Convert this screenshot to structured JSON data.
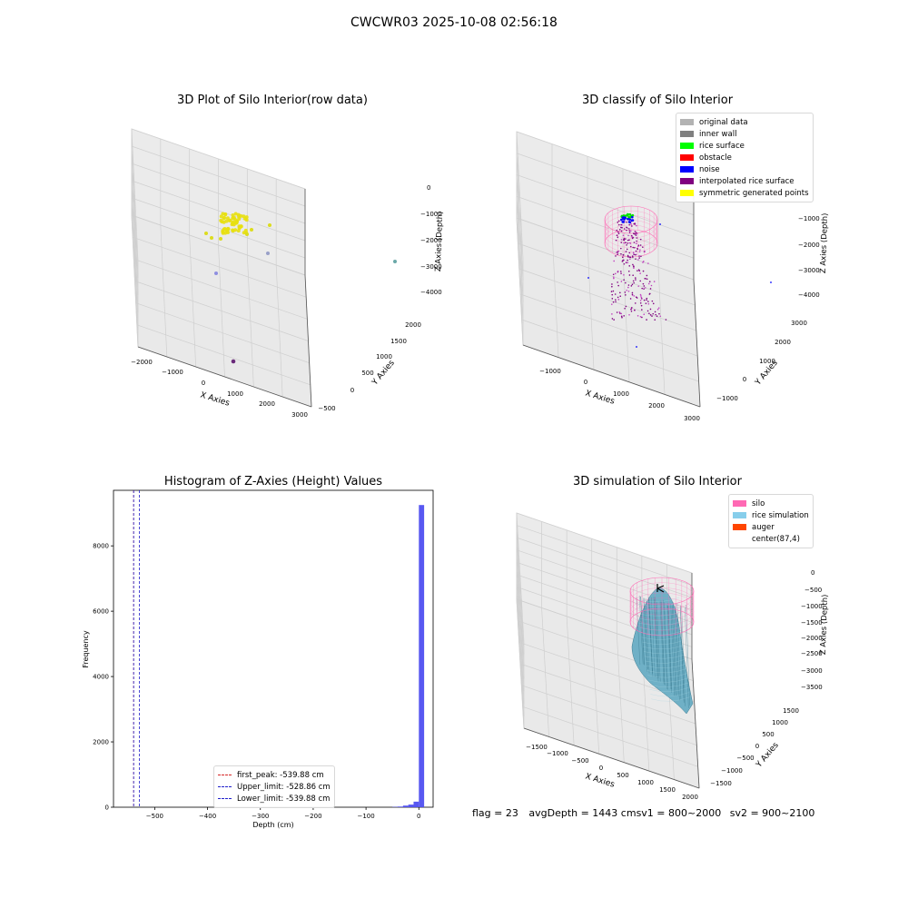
{
  "suptitle": "CWCWR03 2025-10-08 02:56:18",
  "footer": {
    "flag": "flag = 23",
    "avg_depth": "avgDepth = 1443 cm",
    "sv1": "sv1 = 800~2000",
    "sv2": "sv2 = 900~2100"
  },
  "colors": {
    "histogram_bar": "#4f4ff0",
    "first_peak_line": "#d62728",
    "limit_line": "#1f1fcc",
    "silo_wire": "#ff69b4",
    "rice_simulation": "#7fc4d8",
    "auger": "#ff4500"
  },
  "chart_data": [
    {
      "type": "scatter",
      "subtype": "3d",
      "title": "3D Plot of Silo Interior(row data)",
      "xlabel": "X Axies",
      "ylabel": "Y Axies",
      "zlabel": "Z Axies (Depth)",
      "x_ticks": [
        "−2000",
        "−1000",
        "0",
        "1000",
        "2000",
        "3000"
      ],
      "y_ticks": [
        "−500",
        "0",
        "500",
        "1000",
        "1500",
        "2000"
      ],
      "z_ticks": [
        "0",
        "−1000",
        "−2000",
        "−3000",
        "−4000"
      ],
      "xlim": [
        -2200,
        3100
      ],
      "ylim": [
        -700,
        2100
      ],
      "zlim": [
        -4500,
        0
      ],
      "points_description": "cluster of yellow points near x≈-600, y≈400, z≈-1000 with a few outliers",
      "grid": true
    },
    {
      "type": "scatter",
      "subtype": "3d",
      "title": "3D classify of Silo Interior",
      "xlabel": "X Axies",
      "ylabel": "Y Axies",
      "zlabel": "Z Axies (Depth)",
      "x_ticks": [
        "−1000",
        "0",
        "1000",
        "2000",
        "3000"
      ],
      "y_ticks": [
        "−1000",
        "0",
        "1000",
        "2000",
        "3000"
      ],
      "z_ticks": [
        "−1000",
        "−2000",
        "−3000",
        "−4000"
      ],
      "xlim": [
        -1500,
        3100
      ],
      "ylim": [
        -1500,
        3200
      ],
      "zlim": [
        -4500,
        -500
      ],
      "legend": {
        "placement": "top-right",
        "entries": [
          {
            "label": "original data",
            "color": "#b3b3b3"
          },
          {
            "label": "inner wall",
            "color": "#808080"
          },
          {
            "label": "rice surface",
            "color": "#00ff00"
          },
          {
            "label": "obstacle",
            "color": "#ff0000"
          },
          {
            "label": "noise",
            "color": "#0000ff"
          },
          {
            "label": "interpolated rice surface",
            "color": "#800080"
          },
          {
            "label": "symmetric generated points",
            "color": "#ffff00"
          }
        ]
      },
      "grid": true
    },
    {
      "type": "bar",
      "subtype": "histogram",
      "title": "Histogram of Z-Axies (Height) Values",
      "xlabel": "Depth (cm)",
      "ylabel": "Frequency",
      "xlim": [
        -578,
        27
      ],
      "ylim": [
        0,
        9700
      ],
      "x_ticks": [
        -500,
        -400,
        -300,
        -200,
        -100,
        0
      ],
      "x_tick_labels": [
        "−500",
        "−400",
        "−300",
        "−200",
        "−100",
        "0"
      ],
      "y_ticks": [
        0,
        2000,
        4000,
        6000,
        8000
      ],
      "bins": [
        {
          "x0": -50,
          "x1": -40,
          "count": 10
        },
        {
          "x0": -40,
          "x1": -30,
          "count": 20
        },
        {
          "x0": -30,
          "x1": -20,
          "count": 50
        },
        {
          "x0": -20,
          "x1": -10,
          "count": 80
        },
        {
          "x0": -10,
          "x1": 0,
          "count": 170
        },
        {
          "x0": 0,
          "x1": 10,
          "count": 9250
        }
      ],
      "vlines": [
        {
          "label": "first_peak: -539.88 cm",
          "x": -539.88,
          "color": "#d62728"
        },
        {
          "label": "Upper_limit: -528.86 cm",
          "x": -528.86,
          "color": "#1f1fcc"
        },
        {
          "label": "Lower_limit: -539.88 cm",
          "x": -539.88,
          "color": "#1f1fcc"
        }
      ],
      "legend": {
        "placement": "lower-center"
      }
    },
    {
      "type": "area",
      "subtype": "3d-surface",
      "title": "3D simulation of Silo Interior",
      "xlabel": "X Axies",
      "ylabel": "Y Axies",
      "zlabel": "Z Axies (Depth)",
      "x_ticks": [
        "−1500",
        "−1000",
        "−500",
        "0",
        "500",
        "1000",
        "1500",
        "2000"
      ],
      "y_ticks": [
        "−1500",
        "−1000",
        "−500",
        "0",
        "500",
        "1000",
        "1500"
      ],
      "z_ticks": [
        "0",
        "−500",
        "−1000",
        "−1500",
        "−2000",
        "−2500",
        "−3000",
        "−3500"
      ],
      "xlim": [
        -1700,
        2100
      ],
      "ylim": [
        -1700,
        1700
      ],
      "zlim": [
        -3600,
        200
      ],
      "legend": {
        "placement": "top-right",
        "entries": [
          {
            "label": "silo",
            "color": "#ff69b4"
          },
          {
            "label": "rice simulation",
            "color": "#87ceeb"
          },
          {
            "label": "auger",
            "color": "#ff4500"
          },
          {
            "label": "center(87,4)",
            "color": ""
          }
        ]
      },
      "grid": true
    }
  ]
}
